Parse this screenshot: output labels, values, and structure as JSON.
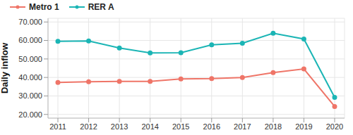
{
  "chart_data": {
    "type": "line",
    "y_label": "Daily inflow",
    "categories": [
      "2011",
      "2012",
      "2013",
      "2014",
      "2015",
      "2016",
      "2017",
      "2018",
      "2019",
      "2020"
    ],
    "series": [
      {
        "name": "Metro 1",
        "color": "#ef7568",
        "values": [
          37300,
          37700,
          37900,
          37900,
          39200,
          39400,
          40000,
          42600,
          44600,
          24300
        ]
      },
      {
        "name": "RER A",
        "color": "#1bb5b5",
        "values": [
          59500,
          59700,
          55900,
          53300,
          53400,
          57600,
          58500,
          63900,
          60800,
          29200
        ]
      }
    ],
    "ylim": [
      18000,
      72000
    ],
    "yticks": [
      {
        "value": 20000,
        "label": "20.000"
      },
      {
        "value": 30000,
        "label": "30.000"
      },
      {
        "value": 40000,
        "label": "40.000"
      },
      {
        "value": 50000,
        "label": "50.000"
      },
      {
        "value": 60000,
        "label": "60.000"
      },
      {
        "value": 70000,
        "label": "70.000"
      }
    ],
    "grid": true,
    "legend": "top-left",
    "marker": "circle"
  }
}
